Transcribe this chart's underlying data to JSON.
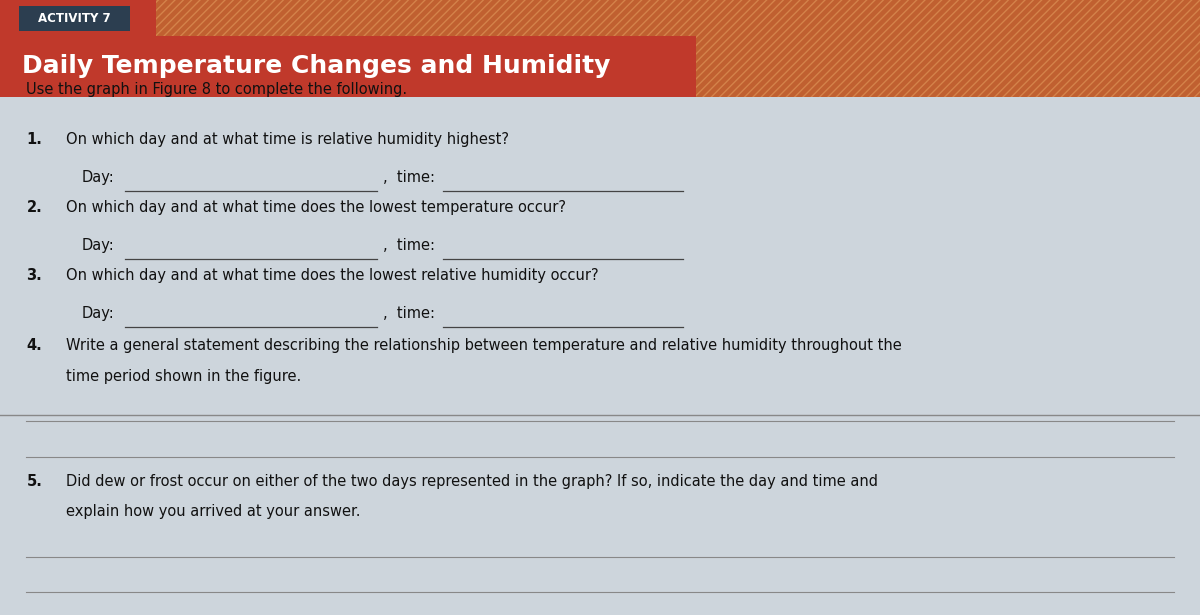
{
  "activity_label": "ACTIVITY 7",
  "title": "Daily Temperature Changes and Humidity",
  "header_bg_color": "#c0392b",
  "header_text_color": "#ffffff",
  "activity_label_bg": "#2c3e50",
  "body_bg_color": "#cdd5dc",
  "instruction": "Use the graph in Figure 8 to complete the following.",
  "questions": [
    {
      "number": "1.",
      "text": "On which day and at what time is relative humidity highest?",
      "fields": [
        [
          "Day:",
          "time:"
        ]
      ],
      "answer_lines": 0
    },
    {
      "number": "2.",
      "text": "On which day and at what time does the lowest temperature occur?",
      "fields": [
        [
          "Day:",
          "time:"
        ]
      ],
      "answer_lines": 0
    },
    {
      "number": "3.",
      "text": "On which day and at what time does the lowest relative humidity occur?",
      "fields": [
        [
          "Day:",
          "time:"
        ]
      ],
      "answer_lines": 0
    },
    {
      "number": "4.",
      "text": "Write a general statement describing the relationship between temperature and relative humidity throughout the\ntime period shown in the figure.",
      "fields": [],
      "answer_lines": 2
    },
    {
      "number": "5.",
      "text": "Did dew or frost occur on either of the two days represented in the graph? If so, indicate the day and time and\nexplain how you arrived at your answer.",
      "fields": [],
      "answer_lines": 2
    }
  ],
  "hatch_color": "#c06030",
  "line_color": "#888888",
  "line_color_dark": "#444444"
}
